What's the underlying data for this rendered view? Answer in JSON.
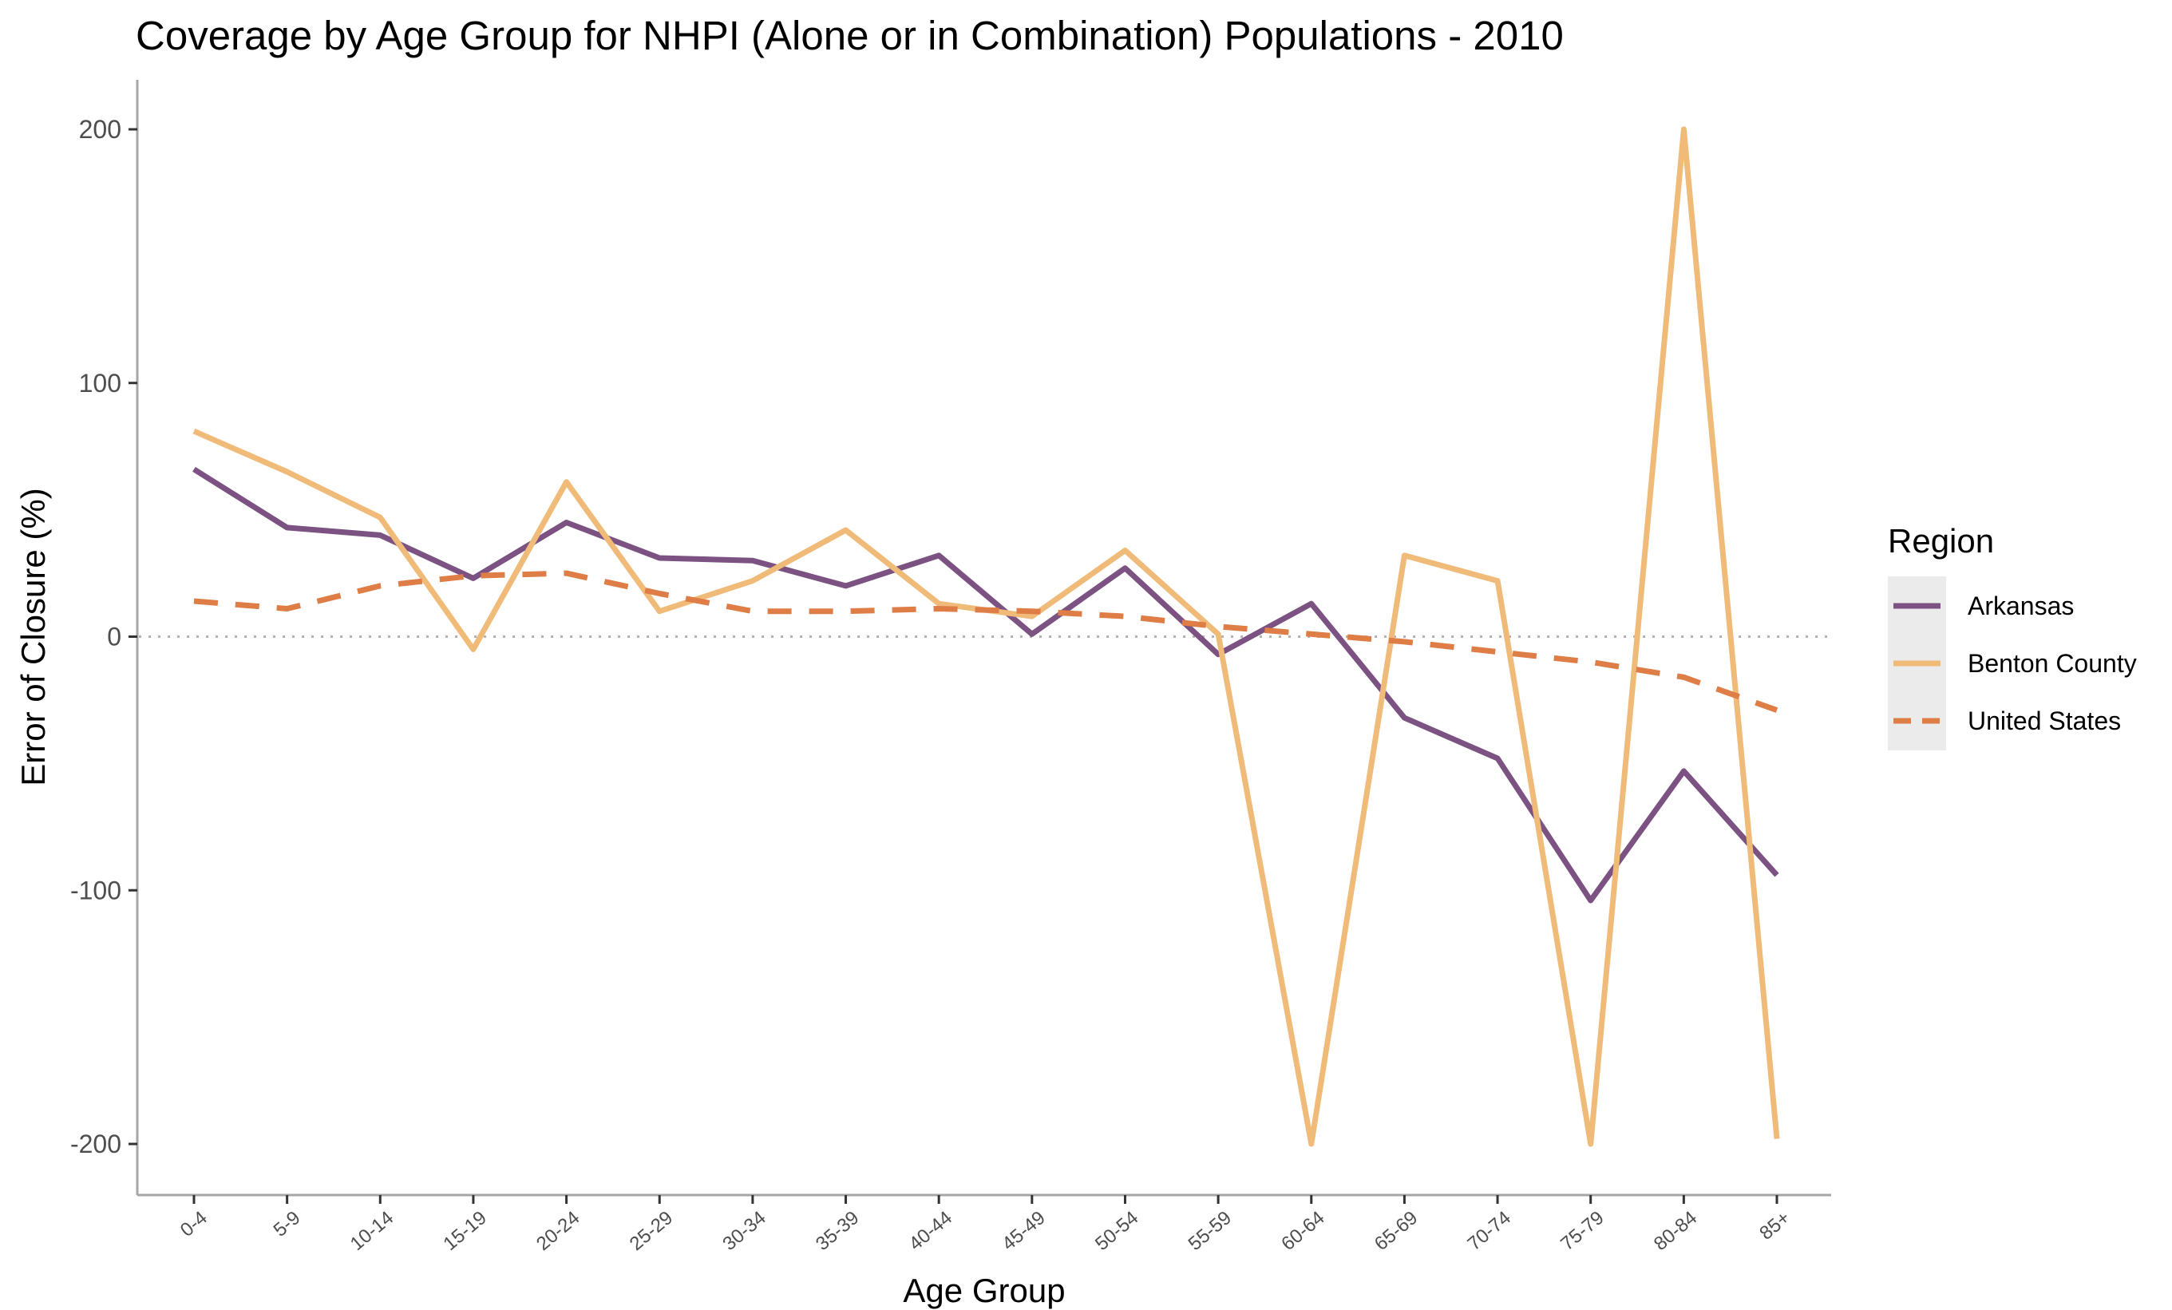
{
  "chart_data": {
    "type": "line",
    "title": "Coverage by Age Group for NHPI (Alone or in Combination) Populations - 2010",
    "xlabel": "Age Group",
    "ylabel": "Error of Closure (%)",
    "categories": [
      "0-4",
      "5-9",
      "10-14",
      "15-19",
      "20-24",
      "25-29",
      "30-34",
      "35-39",
      "40-44",
      "45-49",
      "50-54",
      "55-59",
      "60-64",
      "65-69",
      "70-74",
      "75-79",
      "80-84",
      "85+"
    ],
    "yticks": [
      {
        "value": 200,
        "label": "200"
      },
      {
        "value": 100,
        "label": "100"
      },
      {
        "value": 0,
        "label": "0"
      },
      {
        "value": -100,
        "label": "-100"
      },
      {
        "value": -200,
        "label": "-200"
      }
    ],
    "ylim": [
      -220,
      220
    ],
    "zero_reference_line": true,
    "grid": false,
    "legend": {
      "title": "Region",
      "position": "right"
    },
    "series": [
      {
        "name": "Arkansas",
        "color": "#7b5281",
        "dash": "solid",
        "values": [
          66,
          43,
          40,
          23,
          45,
          31,
          30,
          20,
          32,
          1,
          27,
          -7,
          13,
          -32,
          -48,
          -104,
          -53,
          -94
        ]
      },
      {
        "name": "Benton County",
        "color": "#f0bb78",
        "dash": "solid",
        "values": [
          81,
          65,
          47,
          -5,
          61,
          10,
          22,
          42,
          13,
          8,
          34,
          1,
          -200,
          32,
          22,
          -200,
          200,
          -198
        ]
      },
      {
        "name": "United States",
        "color": "#de7d45",
        "dash": "dashed",
        "values": [
          14,
          11,
          20,
          24,
          25,
          17,
          10,
          10,
          11,
          10,
          8,
          4,
          1,
          -2,
          -6,
          -10,
          -16,
          -29
        ]
      }
    ]
  }
}
